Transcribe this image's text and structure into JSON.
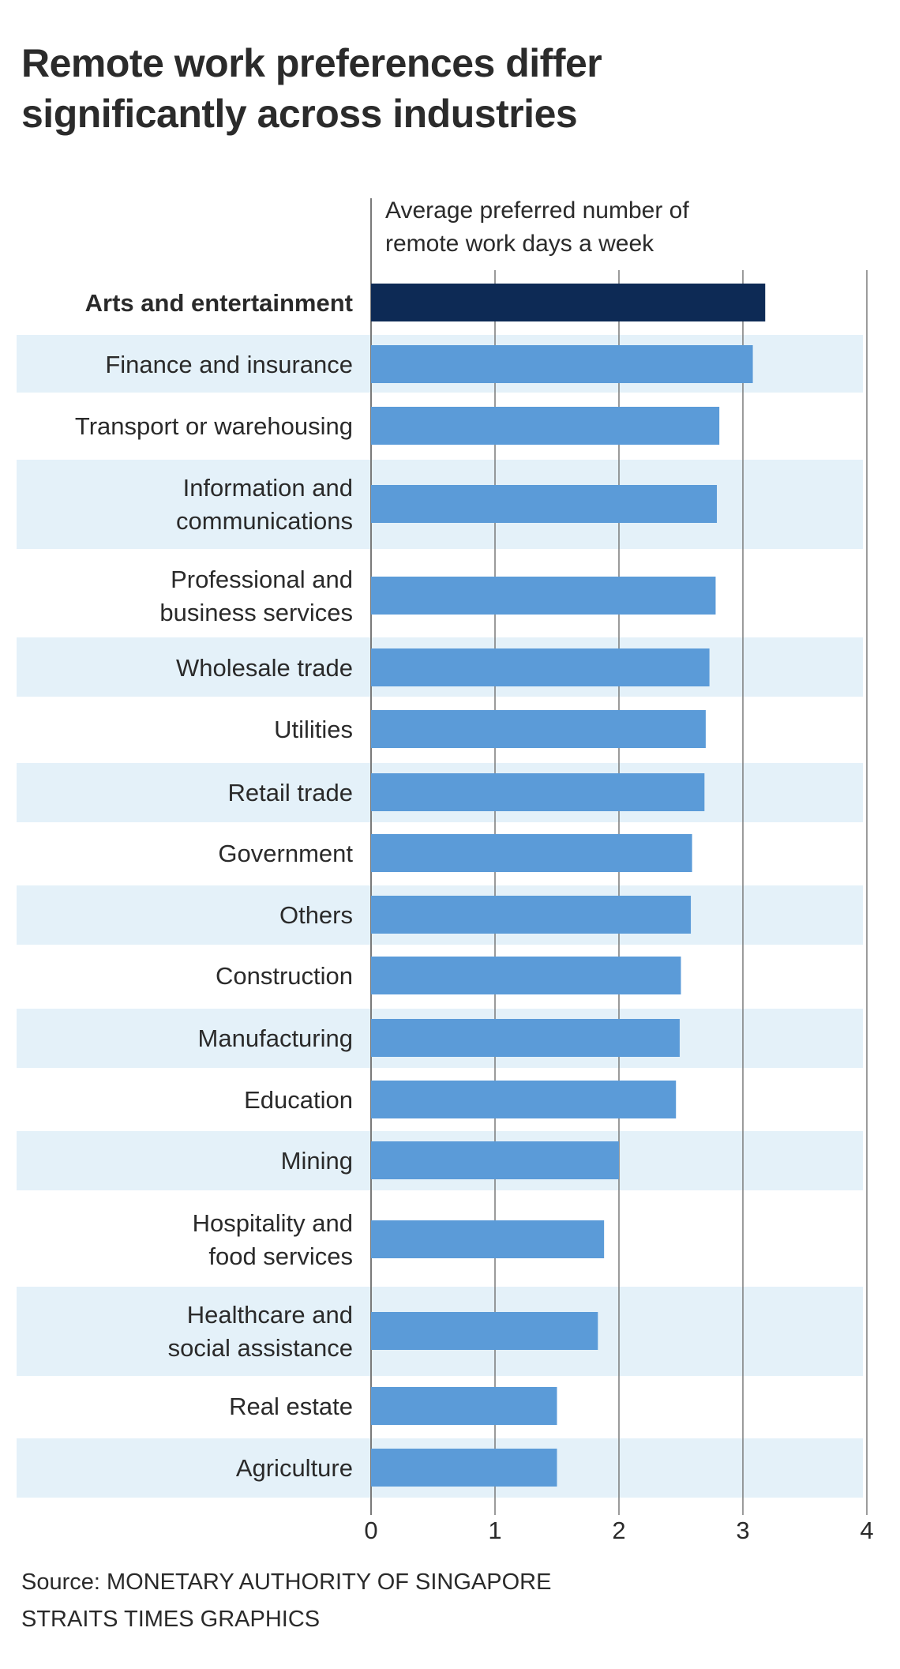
{
  "title": {
    "line1": "Remote work preferences differ",
    "line2": "significantly across industries"
  },
  "unit_label": {
    "line1": "Average preferred number of",
    "line2": "remote work days a week"
  },
  "footer": {
    "source": "Source: MONETARY AUTHORITY OF SINGAPORE",
    "credit": "STRAITS TIMES GRAPHICS"
  },
  "colors": {
    "highlight_bar": "#0d2a55",
    "bar": "#5b9bd8",
    "band": "#e4f1f9",
    "grid": "#7a7a7a",
    "text": "#2a2a2a"
  },
  "chart_data": {
    "type": "bar",
    "orientation": "horizontal",
    "title": "Remote work preferences differ significantly across industries",
    "xlabel": "Average preferred number of remote work days a week",
    "ylabel": "",
    "xlim": [
      0,
      4
    ],
    "xticks": [
      "0",
      "1",
      "2",
      "3",
      "4"
    ],
    "grid": true,
    "highlight": "Arts and entertainment",
    "categories": [
      [
        "Arts and entertainment"
      ],
      [
        "Finance and insurance"
      ],
      [
        "Transport or warehousing"
      ],
      [
        "Information and",
        "communications"
      ],
      [
        "Professional and",
        "business services"
      ],
      [
        "Wholesale trade"
      ],
      [
        "Utilities"
      ],
      [
        "Retail trade"
      ],
      [
        "Government"
      ],
      [
        "Others"
      ],
      [
        "Construction"
      ],
      [
        "Manufacturing"
      ],
      [
        "Education"
      ],
      [
        "Mining"
      ],
      [
        "Hospitality and",
        "food services"
      ],
      [
        "Healthcare and",
        "social assistance"
      ],
      [
        "Real estate"
      ],
      [
        "Agriculture"
      ]
    ],
    "values": [
      3.18,
      3.08,
      2.81,
      2.79,
      2.78,
      2.73,
      2.7,
      2.69,
      2.59,
      2.58,
      2.5,
      2.49,
      2.46,
      2.0,
      1.88,
      1.83,
      1.5,
      1.5
    ],
    "source": "Source: MONETARY AUTHORITY OF SINGAPORE"
  }
}
